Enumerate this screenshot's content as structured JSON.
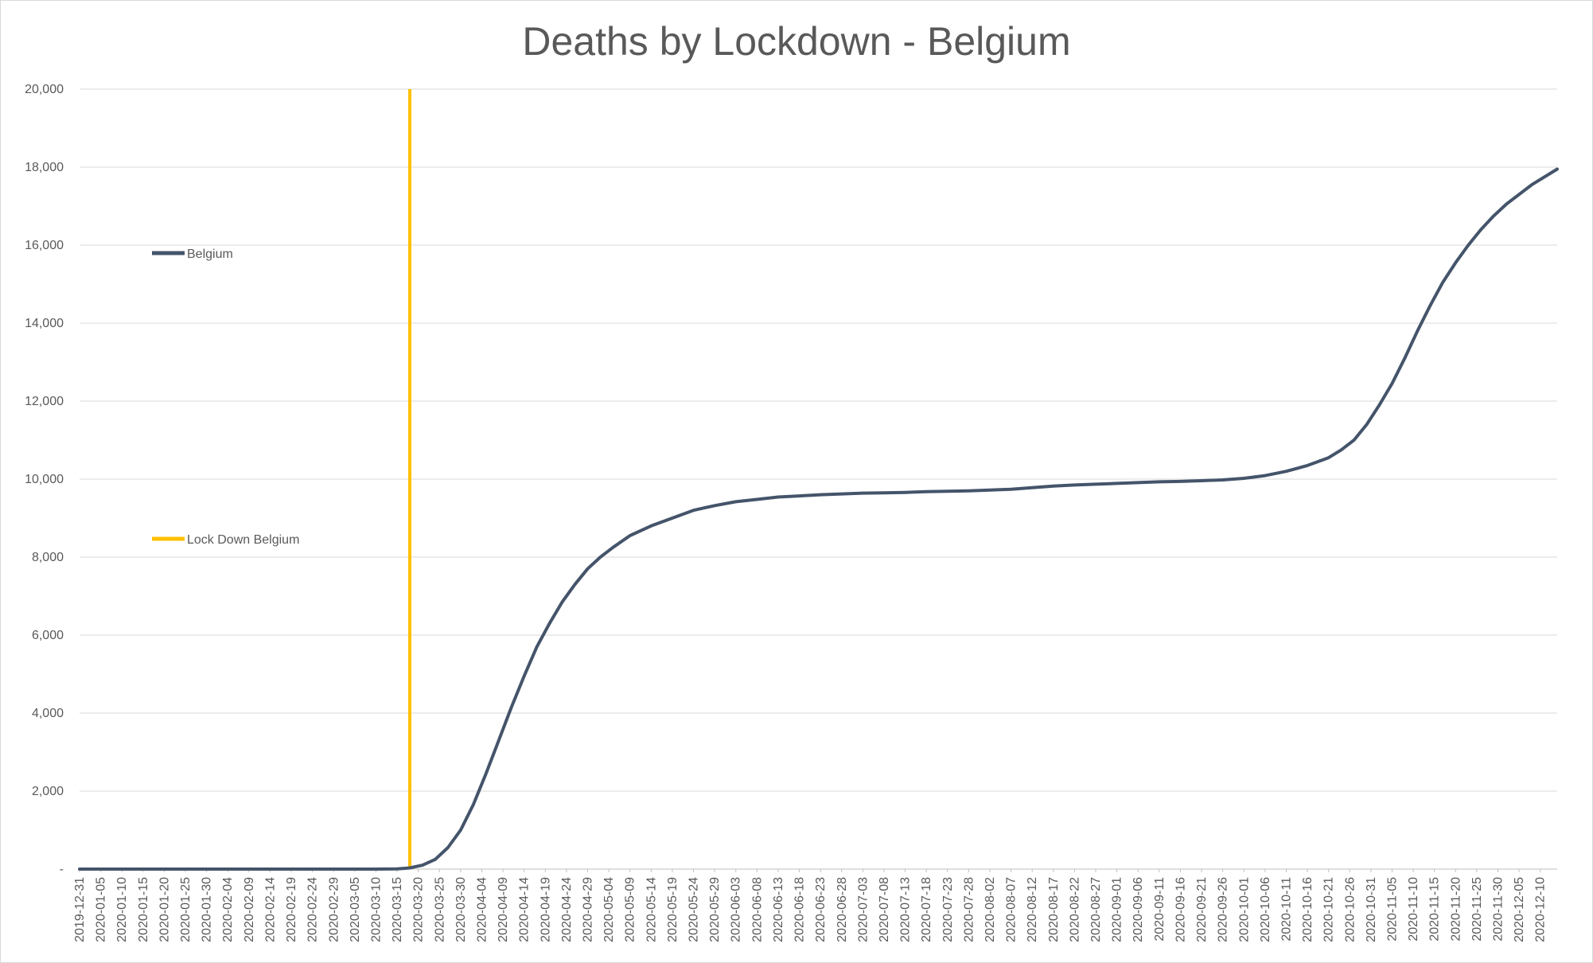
{
  "chart_data": {
    "type": "line",
    "title": "Deaths by Lockdown - Belgium",
    "xlabel": "",
    "ylabel": "",
    "ylim": [
      0,
      20000
    ],
    "y_ticks": [
      0,
      2000,
      4000,
      6000,
      8000,
      10000,
      12000,
      14000,
      16000,
      18000,
      20000
    ],
    "y_tick_labels": [
      "-",
      "2,000",
      "4,000",
      "6,000",
      "8,000",
      "10,000",
      "12,000",
      "14,000",
      "16,000",
      "18,000",
      "20,000"
    ],
    "x_start": "2019-12-31",
    "x_end": "2020-12-14",
    "x_tick_labels": [
      "2019-12-31",
      "2020-01-05",
      "2020-01-10",
      "2020-01-15",
      "2020-01-20",
      "2020-01-25",
      "2020-01-30",
      "2020-02-04",
      "2020-02-09",
      "2020-02-14",
      "2020-02-19",
      "2020-02-24",
      "2020-02-29",
      "2020-03-05",
      "2020-03-10",
      "2020-03-15",
      "2020-03-20",
      "2020-03-25",
      "2020-03-30",
      "2020-04-04",
      "2020-04-09",
      "2020-04-14",
      "2020-04-19",
      "2020-04-24",
      "2020-04-29",
      "2020-05-04",
      "2020-05-09",
      "2020-05-14",
      "2020-05-19",
      "2020-05-24",
      "2020-05-29",
      "2020-06-03",
      "2020-06-08",
      "2020-06-13",
      "2020-06-18",
      "2020-06-23",
      "2020-06-28",
      "2020-07-03",
      "2020-07-08",
      "2020-07-13",
      "2020-07-18",
      "2020-07-23",
      "2020-07-28",
      "2020-08-02",
      "2020-08-07",
      "2020-08-12",
      "2020-08-17",
      "2020-08-22",
      "2020-08-27",
      "2020-09-01",
      "2020-09-06",
      "2020-09-11",
      "2020-09-16",
      "2020-09-21",
      "2020-09-26",
      "2020-10-01",
      "2020-10-06",
      "2020-10-11",
      "2020-10-16",
      "2020-10-21",
      "2020-10-26",
      "2020-10-31",
      "2020-11-05",
      "2020-11-10",
      "2020-11-15",
      "2020-11-20",
      "2020-11-25",
      "2020-11-30",
      "2020-12-05",
      "2020-12-10"
    ],
    "grid": true,
    "legend_position": "left",
    "series": [
      {
        "name": "Belgium",
        "color": "#44546a",
        "points": [
          [
            "2019-12-31",
            0
          ],
          [
            "2020-03-10",
            0
          ],
          [
            "2020-03-15",
            5
          ],
          [
            "2020-03-18",
            30
          ],
          [
            "2020-03-21",
            100
          ],
          [
            "2020-03-24",
            250
          ],
          [
            "2020-03-27",
            550
          ],
          [
            "2020-03-30",
            1000
          ],
          [
            "2020-04-02",
            1650
          ],
          [
            "2020-04-05",
            2450
          ],
          [
            "2020-04-08",
            3300
          ],
          [
            "2020-04-11",
            4150
          ],
          [
            "2020-04-14",
            4950
          ],
          [
            "2020-04-17",
            5700
          ],
          [
            "2020-04-20",
            6300
          ],
          [
            "2020-04-23",
            6850
          ],
          [
            "2020-04-26",
            7300
          ],
          [
            "2020-04-29",
            7700
          ],
          [
            "2020-05-02",
            8000
          ],
          [
            "2020-05-05",
            8250
          ],
          [
            "2020-05-09",
            8550
          ],
          [
            "2020-05-14",
            8800
          ],
          [
            "2020-05-19",
            9000
          ],
          [
            "2020-05-24",
            9200
          ],
          [
            "2020-05-29",
            9320
          ],
          [
            "2020-06-03",
            9420
          ],
          [
            "2020-06-08",
            9480
          ],
          [
            "2020-06-13",
            9540
          ],
          [
            "2020-06-18",
            9570
          ],
          [
            "2020-06-23",
            9600
          ],
          [
            "2020-06-28",
            9620
          ],
          [
            "2020-07-03",
            9640
          ],
          [
            "2020-07-08",
            9650
          ],
          [
            "2020-07-13",
            9660
          ],
          [
            "2020-07-18",
            9680
          ],
          [
            "2020-07-23",
            9690
          ],
          [
            "2020-07-28",
            9700
          ],
          [
            "2020-08-02",
            9720
          ],
          [
            "2020-08-07",
            9740
          ],
          [
            "2020-08-12",
            9780
          ],
          [
            "2020-08-17",
            9820
          ],
          [
            "2020-08-22",
            9850
          ],
          [
            "2020-08-27",
            9870
          ],
          [
            "2020-09-01",
            9890
          ],
          [
            "2020-09-06",
            9910
          ],
          [
            "2020-09-11",
            9930
          ],
          [
            "2020-09-16",
            9940
          ],
          [
            "2020-09-21",
            9960
          ],
          [
            "2020-09-26",
            9980
          ],
          [
            "2020-10-01",
            10020
          ],
          [
            "2020-10-06",
            10090
          ],
          [
            "2020-10-11",
            10200
          ],
          [
            "2020-10-16",
            10350
          ],
          [
            "2020-10-21",
            10550
          ],
          [
            "2020-10-24",
            10750
          ],
          [
            "2020-10-27",
            11000
          ],
          [
            "2020-10-30",
            11400
          ],
          [
            "2020-11-02",
            11900
          ],
          [
            "2020-11-05",
            12450
          ],
          [
            "2020-11-08",
            13100
          ],
          [
            "2020-11-11",
            13800
          ],
          [
            "2020-11-14",
            14450
          ],
          [
            "2020-11-17",
            15050
          ],
          [
            "2020-11-20",
            15550
          ],
          [
            "2020-11-23",
            16000
          ],
          [
            "2020-11-26",
            16400
          ],
          [
            "2020-11-29",
            16750
          ],
          [
            "2020-12-02",
            17050
          ],
          [
            "2020-12-05",
            17300
          ],
          [
            "2020-12-08",
            17550
          ],
          [
            "2020-12-11",
            17750
          ],
          [
            "2020-12-14",
            17950
          ]
        ]
      }
    ],
    "annotations": [
      {
        "name": "Lock Down Belgium",
        "type": "vertical-line",
        "x": "2020-03-18",
        "color": "#ffc000"
      }
    ]
  }
}
